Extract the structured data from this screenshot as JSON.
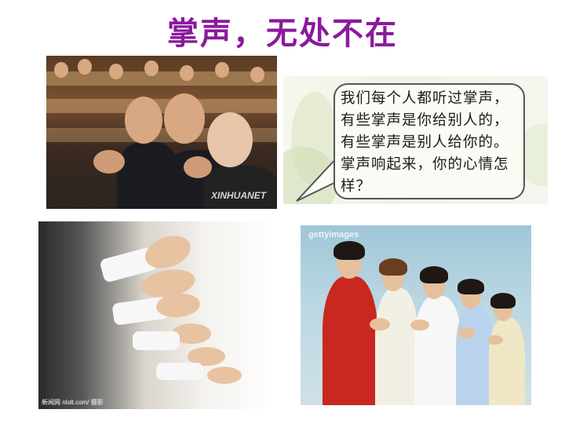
{
  "slide": {
    "title": "掌声，无处不在",
    "bubble_text": "我们每个人都听过掌声，有些掌声是你给别人的，有些掌声是别人给你的。掌声响起来，你的心情怎样？",
    "colors": {
      "title": "#8a1a9c",
      "bubble_border": "#555555"
    }
  },
  "photos": {
    "photo1": {
      "watermark": "XINHUANET"
    },
    "photo3": {
      "watermark": "新闻网 nlolt.com/ 摄影"
    },
    "photo4": {
      "watermark": "gettyimages"
    }
  }
}
